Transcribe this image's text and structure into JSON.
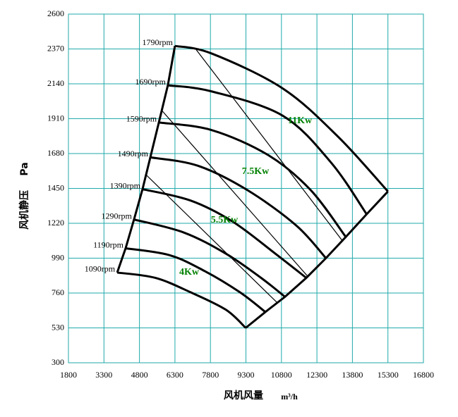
{
  "chart_data": {
    "type": "line",
    "x_label": "风机风量",
    "x_unit": "m³/h",
    "y_label": "风机静压",
    "y_unit": "Pa",
    "xlim": [
      1800,
      16800
    ],
    "xticks": [
      1800,
      3300,
      4800,
      6300,
      7800,
      9300,
      10800,
      12300,
      13800,
      15300,
      16800
    ],
    "ylim": [
      300,
      2600
    ],
    "yticks": [
      300,
      530,
      760,
      990,
      1220,
      1450,
      1680,
      1910,
      2140,
      2370,
      2600
    ],
    "grid": true,
    "series": [
      {
        "name": "1790rpm",
        "color": "#000000",
        "x": [
          6300,
          7850,
          10850,
          13200,
          15300
        ],
        "values": [
          2390,
          2340,
          2110,
          1790,
          1430
        ]
      },
      {
        "name": "1690rpm",
        "color": "#000000",
        "x": [
          6000,
          7850,
          10850,
          12900,
          14400
        ],
        "values": [
          2130,
          2090,
          1930,
          1620,
          1280
        ]
      },
      {
        "name": "1590rpm",
        "color": "#000000",
        "x": [
          5620,
          7850,
          10240,
          12030,
          13520
        ],
        "values": [
          1885,
          1835,
          1670,
          1440,
          1130
        ]
      },
      {
        "name": "1490rpm",
        "color": "#000000",
        "x": [
          5260,
          7260,
          9350,
          11430,
          12680
        ],
        "values": [
          1655,
          1600,
          1440,
          1205,
          990
        ]
      },
      {
        "name": "1390rpm",
        "color": "#000000",
        "x": [
          4930,
          6960,
          8750,
          10540,
          11850
        ],
        "values": [
          1445,
          1370,
          1230,
          1020,
          860
        ]
      },
      {
        "name": "1290rpm",
        "color": "#000000",
        "x": [
          4570,
          6660,
          8450,
          9940,
          10950
        ],
        "values": [
          1245,
          1160,
          1020,
          860,
          735
        ]
      },
      {
        "name": "1190rpm",
        "color": "#000000",
        "x": [
          4215,
          6065,
          7555,
          9045,
          10120
        ],
        "values": [
          1055,
          1010,
          905,
          765,
          635
        ]
      },
      {
        "name": "1090rpm",
        "color": "#000000",
        "x": [
          3860,
          5470,
          6960,
          8450,
          9290
        ],
        "values": [
          895,
          860,
          765,
          650,
          530
        ]
      }
    ],
    "power_lines": [
      {
        "x": [
          7200,
          13400
        ],
        "values": [
          2365,
          1100
        ]
      },
      {
        "x": [
          5770,
          11910
        ],
        "values": [
          1960,
          870
        ]
      },
      {
        "x": [
          5080,
          10630
        ],
        "values": [
          1540,
          695
        ]
      }
    ],
    "power_labels": [
      "11Kw",
      "7.5Kw",
      "5.5Kw",
      "4Kw"
    ],
    "power_label_color": "#008000"
  }
}
